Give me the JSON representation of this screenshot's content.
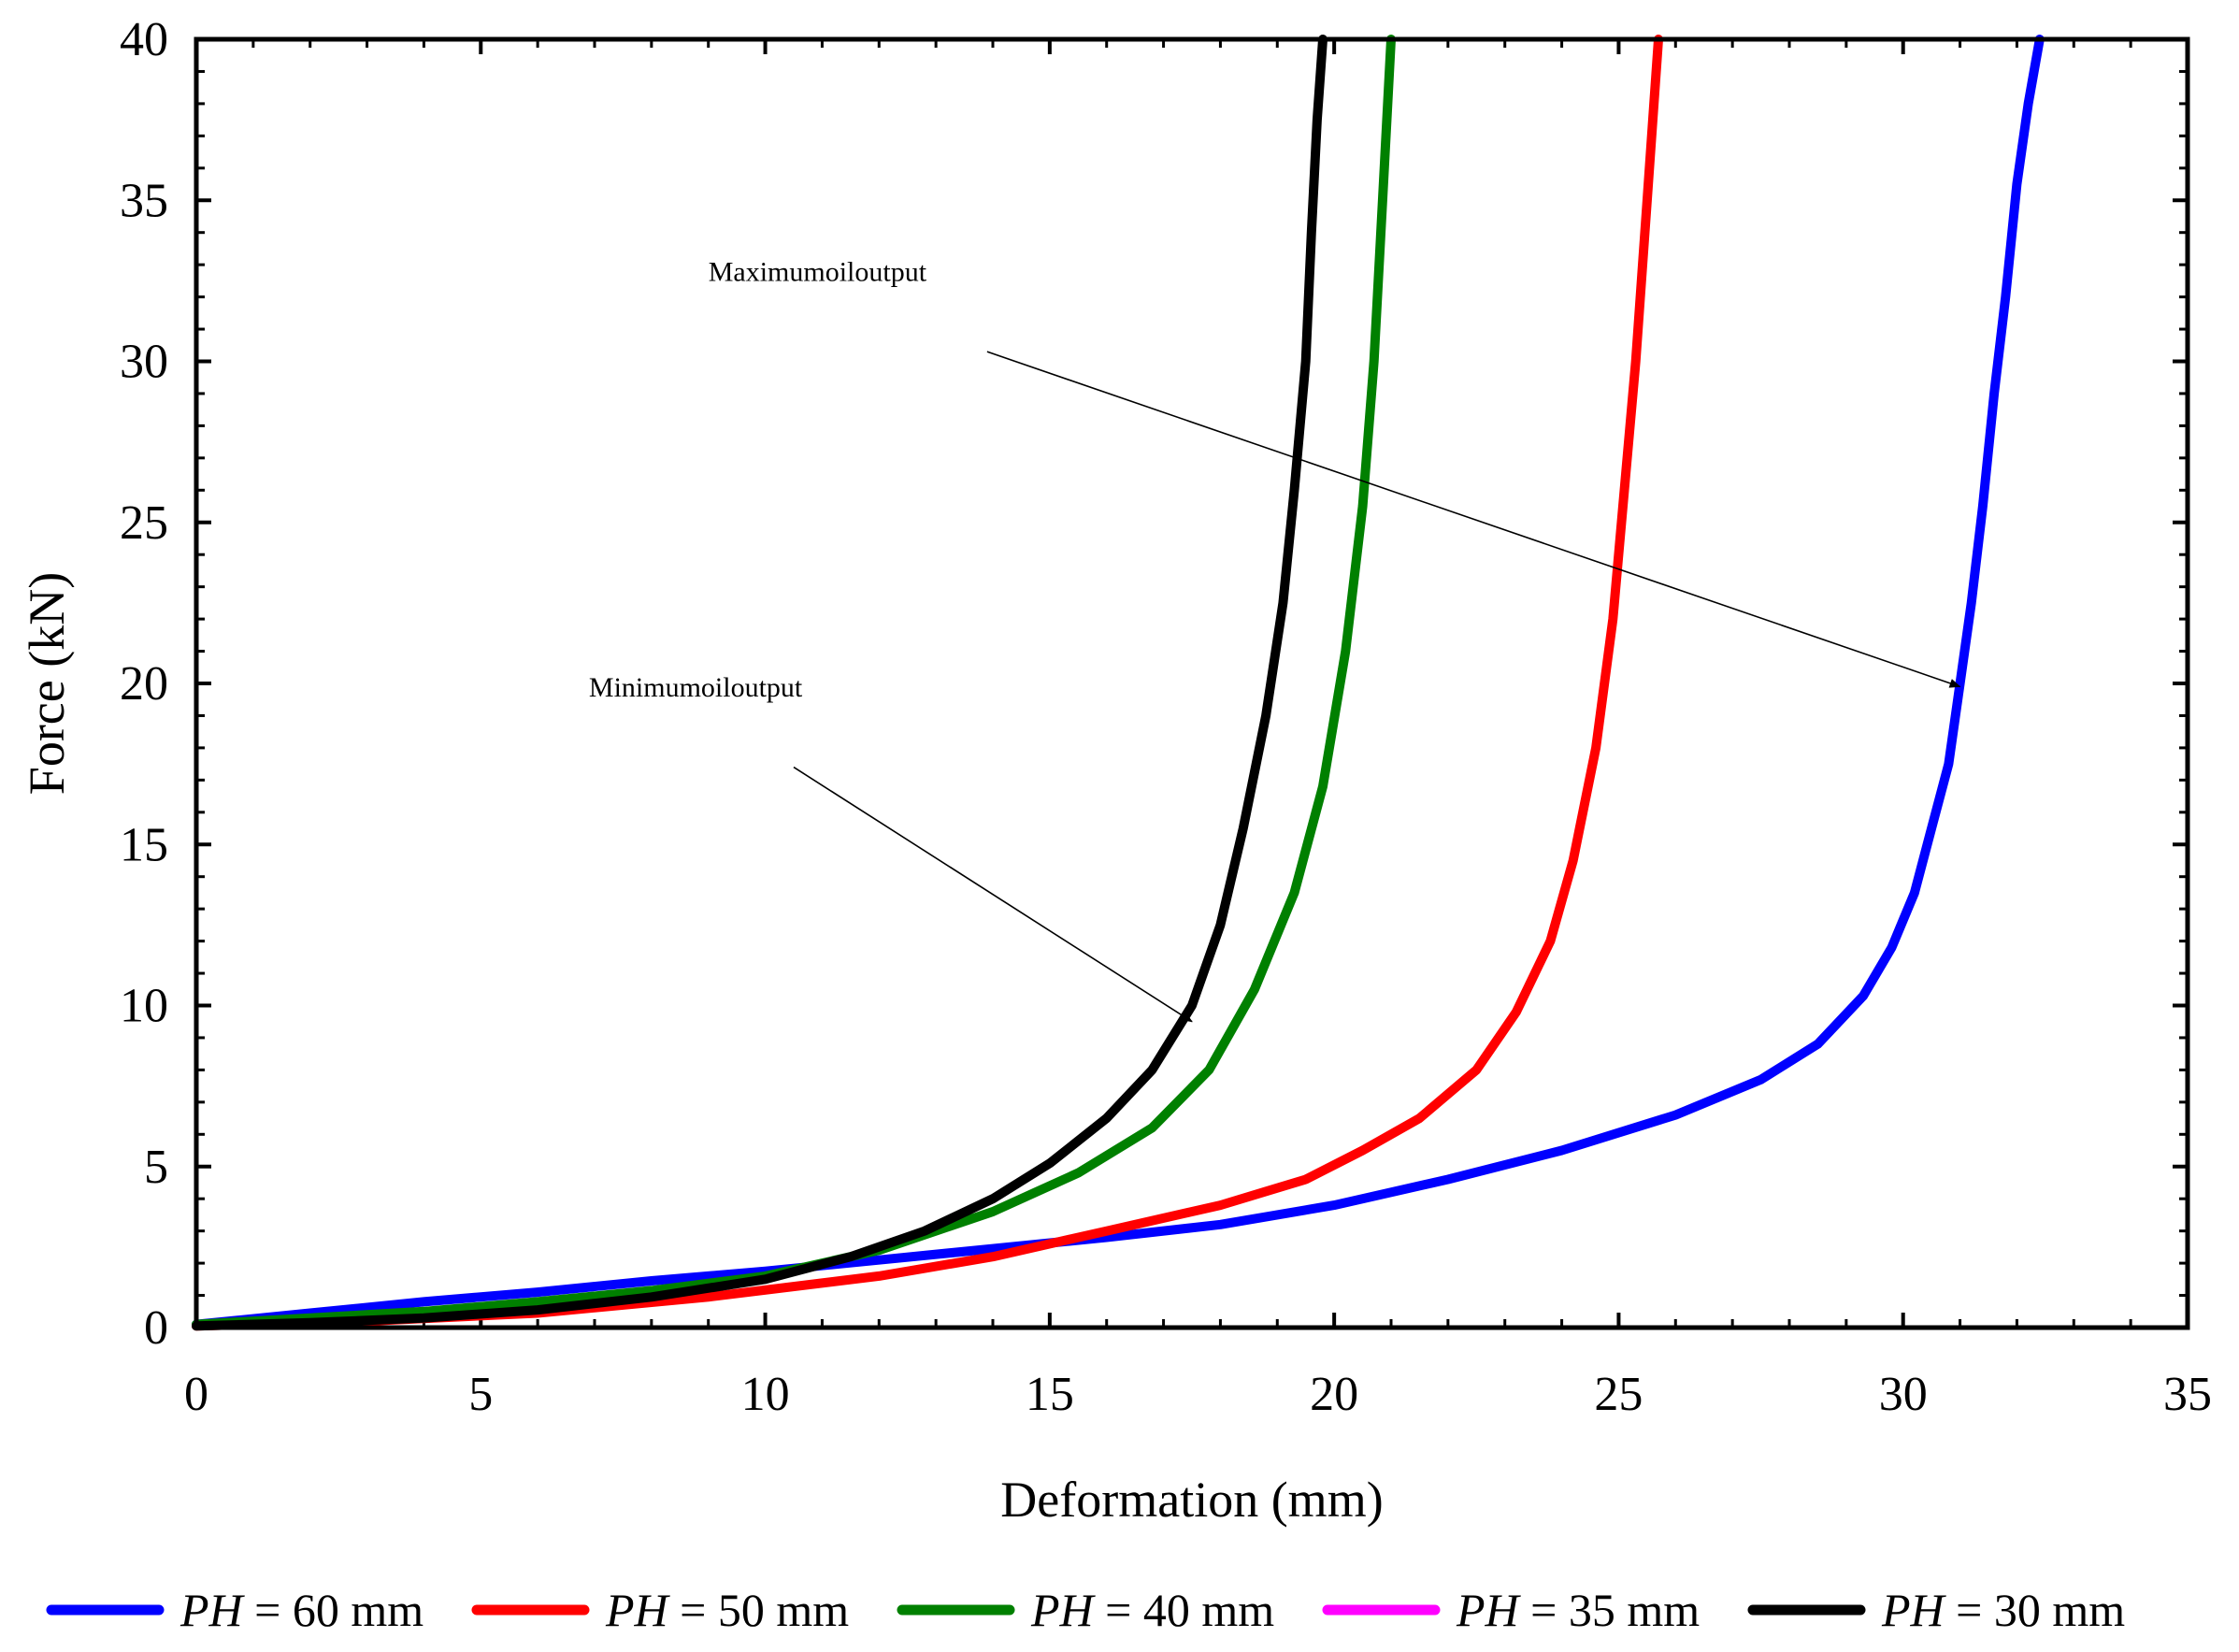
{
  "chart_data": {
    "type": "line",
    "title": "",
    "xlabel": "Deformation (mm)",
    "ylabel": "Force (kN)",
    "xlim": [
      0,
      35
    ],
    "ylim": [
      0,
      40
    ],
    "xticks": [
      0,
      5,
      10,
      15,
      20,
      25,
      30,
      35
    ],
    "yticks": [
      0,
      5,
      10,
      15,
      20,
      25,
      30,
      35,
      40
    ],
    "grid": false,
    "legend_position": "bottom",
    "series": [
      {
        "name": "PH = 60 mm",
        "italic": "PH",
        "rest": " = 60 mm",
        "color": "#0000ff",
        "x": [
          0,
          2,
          4,
          6,
          8,
          10,
          12,
          14,
          16,
          18,
          20,
          22,
          24,
          26,
          27.5,
          28.5,
          29.3,
          29.8,
          30.2,
          30.5,
          30.8,
          31.0,
          31.2,
          31.4,
          31.6,
          31.8,
          32.0,
          32.2,
          32.4
        ],
        "y": [
          0.1,
          0.45,
          0.8,
          1.1,
          1.45,
          1.75,
          2.1,
          2.45,
          2.8,
          3.2,
          3.8,
          4.6,
          5.5,
          6.6,
          7.7,
          8.8,
          10.3,
          11.8,
          13.5,
          15.5,
          17.5,
          20,
          22.5,
          25.5,
          29,
          32,
          35.5,
          38,
          40
        ]
      },
      {
        "name": "PH = 50 mm",
        "italic": "PH",
        "rest": " = 50 mm",
        "color": "#ff0000",
        "x": [
          0,
          3,
          6,
          9,
          12,
          14,
          16,
          18,
          19.5,
          20.5,
          21.5,
          22.5,
          23.2,
          23.8,
          24.2,
          24.6,
          24.9,
          25.1,
          25.3,
          25.5,
          25.7
        ],
        "y": [
          0.05,
          0.2,
          0.45,
          0.95,
          1.6,
          2.2,
          3.0,
          3.8,
          4.6,
          5.5,
          6.5,
          8.0,
          9.8,
          12.0,
          14.5,
          18.0,
          22.0,
          26.0,
          30.0,
          35.0,
          40.0
        ]
      },
      {
        "name": "PH = 40 mm",
        "italic": "PH",
        "rest": " = 40 mm",
        "color": "#008000",
        "x": [
          0,
          2,
          4,
          6,
          8,
          10,
          12,
          14,
          15.5,
          16.8,
          17.8,
          18.6,
          19.3,
          19.8,
          20.2,
          20.5,
          20.7,
          20.85,
          21.0
        ],
        "y": [
          0.1,
          0.3,
          0.5,
          0.8,
          1.15,
          1.6,
          2.4,
          3.6,
          4.8,
          6.2,
          8.0,
          10.5,
          13.5,
          16.8,
          21.0,
          25.5,
          30.0,
          35.0,
          40.0
        ]
      },
      {
        "name": "PH = 35 mm",
        "italic": "PH",
        "rest": " = 35 mm",
        "color": "#ff00ff",
        "x": [],
        "y": []
      },
      {
        "name": "PH = 30 mm",
        "italic": "PH",
        "rest": " = 30 mm",
        "color": "#000000",
        "x": [
          0,
          2,
          4,
          6,
          8,
          10,
          11.5,
          12.8,
          14,
          15,
          16,
          16.8,
          17.5,
          18.0,
          18.4,
          18.8,
          19.1,
          19.3,
          19.5,
          19.6,
          19.7,
          19.8
        ],
        "y": [
          0.05,
          0.15,
          0.3,
          0.55,
          0.95,
          1.5,
          2.2,
          3.0,
          4.0,
          5.1,
          6.5,
          8.0,
          10.0,
          12.5,
          15.5,
          19.0,
          22.5,
          26.0,
          30.0,
          34.0,
          37.5,
          40.0
        ]
      }
    ],
    "annotations": [
      {
        "text": "Maximumoiloutput",
        "arrow_to": [
          31.0,
          19.9
        ],
        "arrow_from": [
          13.9,
          30.3
        ],
        "label_at": [
          9.0,
          32.5
        ]
      },
      {
        "text": "Minimumoiloutput",
        "arrow_to": [
          17.5,
          9.5
        ],
        "arrow_from": [
          10.5,
          17.4
        ],
        "label_at": [
          6.9,
          19.6
        ]
      }
    ]
  }
}
